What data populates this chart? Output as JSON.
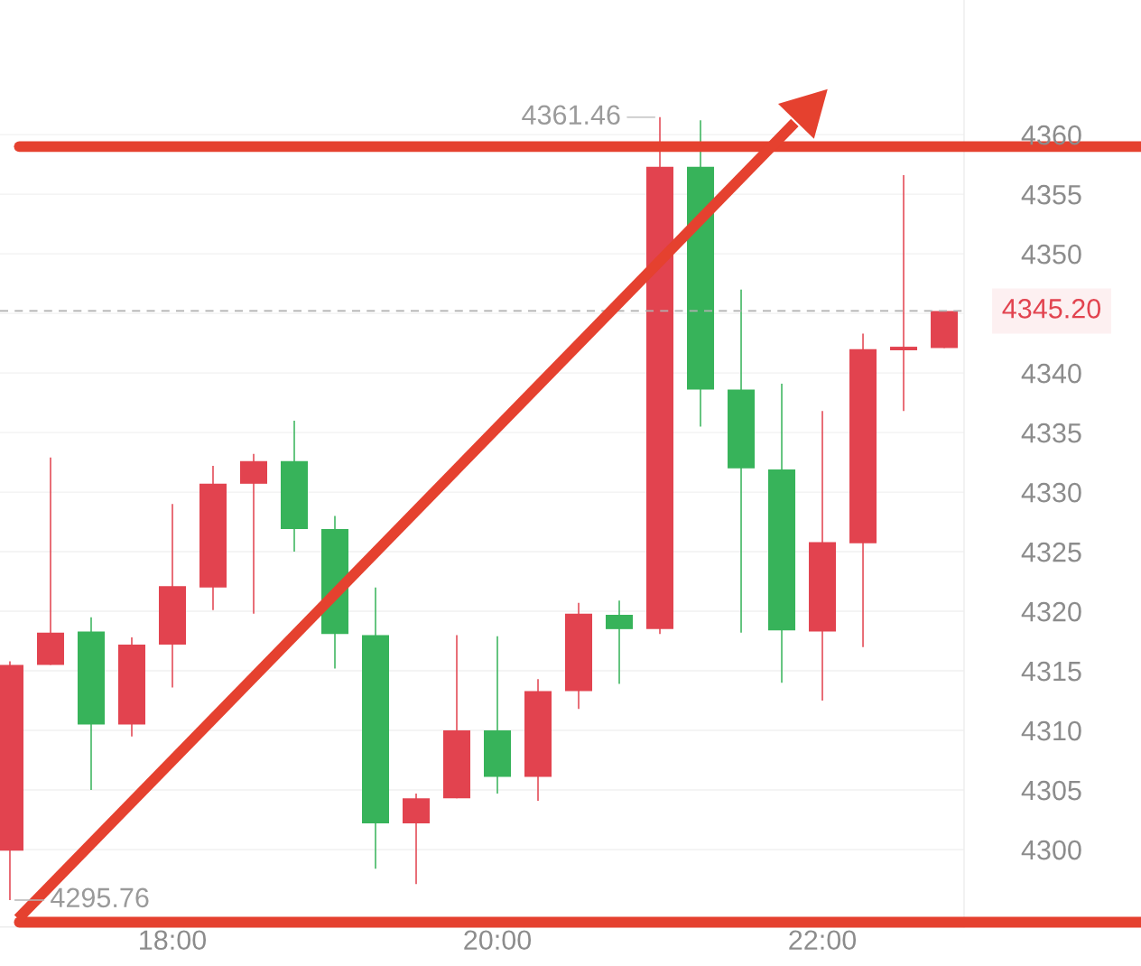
{
  "chart_data": {
    "type": "candlestick",
    "x": [
      17.0,
      17.25,
      17.5,
      17.75,
      18.0,
      18.25,
      18.5,
      18.75,
      19.0,
      19.25,
      19.5,
      19.75,
      20.0,
      20.25,
      20.5,
      20.75,
      21.0,
      21.25,
      21.5,
      21.75,
      22.0,
      22.25,
      22.5,
      22.75
    ],
    "ohlc": [
      [
        4299.9,
        4315.8,
        4295.76,
        4315.5
      ],
      [
        4315.5,
        4332.9,
        4315.5,
        4318.2
      ],
      [
        4318.3,
        4319.5,
        4305.0,
        4310.5
      ],
      [
        4310.5,
        4317.8,
        4309.5,
        4317.2
      ],
      [
        4317.2,
        4329.0,
        4313.6,
        4322.1
      ],
      [
        4322.0,
        4332.2,
        4320.1,
        4330.7
      ],
      [
        4330.7,
        4333.2,
        4319.8,
        4332.6
      ],
      [
        4332.6,
        4336.0,
        4325.0,
        4326.9
      ],
      [
        4326.9,
        4328.0,
        4315.2,
        4318.1
      ],
      [
        4318.0,
        4322.0,
        4298.4,
        4302.2
      ],
      [
        4302.2,
        4304.7,
        4297.1,
        4304.3
      ],
      [
        4304.3,
        4318.0,
        4304.3,
        4310.0
      ],
      [
        4310.0,
        4317.9,
        4304.7,
        4306.1
      ],
      [
        4306.1,
        4314.3,
        4304.1,
        4313.3
      ],
      [
        4313.3,
        4320.7,
        4311.8,
        4319.8
      ],
      [
        4319.7,
        4320.9,
        4313.9,
        4318.5
      ],
      [
        4318.5,
        4361.46,
        4318.1,
        4357.3
      ],
      [
        4357.3,
        4361.2,
        4335.5,
        4338.6
      ],
      [
        4338.6,
        4347.0,
        4318.2,
        4332.0
      ],
      [
        4331.9,
        4339.1,
        4314.0,
        4318.4
      ],
      [
        4318.3,
        4336.8,
        4312.5,
        4325.8
      ],
      [
        4325.7,
        4343.3,
        4317.0,
        4342.0
      ],
      [
        4341.9,
        4356.6,
        4336.8,
        4342.2
      ],
      [
        4342.1,
        4345.2,
        4342.1,
        4345.2
      ]
    ],
    "colors": [
      "#e2434f",
      "#e2434f",
      "#37b35a",
      "#e2434f",
      "#e2434f",
      "#e2434f",
      "#e2434f",
      "#37b35a",
      "#37b35a",
      "#37b35a",
      "#e2434f",
      "#e2434f",
      "#37b35a",
      "#e2434f",
      "#e2434f",
      "#37b35a",
      "#e2434f",
      "#37b35a",
      "#37b35a",
      "#37b35a",
      "#e2434f",
      "#e2434f",
      "#e2434f",
      "#e2434f"
    ],
    "xlim": [
      16.939,
      22.872
    ],
    "ylim": [
      4293.5,
      4371.3
    ],
    "xticks": [
      {
        "value": 18,
        "label": "18:00"
      },
      {
        "value": 20,
        "label": "20:00"
      },
      {
        "value": 22,
        "label": "22:00"
      }
    ],
    "yticks": [
      4300,
      4305,
      4310,
      4315,
      4320,
      4325,
      4330,
      4335,
      4340,
      {
        "value": 4345,
        "label": null
      },
      4350,
      4355,
      4360
    ],
    "grid": "y",
    "annotations": [
      {
        "text": "4361.46",
        "x": 21.0,
        "y": 4361.46
      },
      {
        "text": "4295.76",
        "x": 17.0,
        "y": 4295.76
      }
    ],
    "ref_lines": [
      {
        "axis": "y",
        "value": 4345.2,
        "label": "4345.20",
        "color": "#b0b0b0",
        "line_style": "dashed"
      },
      {
        "axis": "y",
        "value": 4359.0,
        "color": "#e5412f",
        "line_style": "solid"
      },
      {
        "axis": "y",
        "value": 4293.9,
        "color": "#e5412f",
        "line_style": "solid"
      }
    ],
    "series": [
      {
        "type": "line",
        "x": [
          17.05,
          21.83
        ],
        "values": [
          4294.2,
          4361.0
        ],
        "color": "#e5412f"
      }
    ]
  }
}
